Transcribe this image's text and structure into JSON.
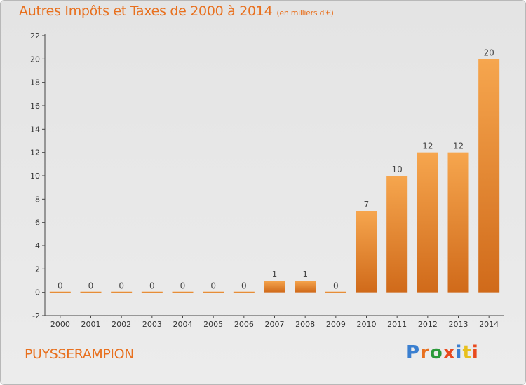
{
  "header": {
    "title": "Autres Impôts et Taxes de 2000 à 2014",
    "subtitle": "(en milliers d'€)"
  },
  "footer": {
    "commune": "PUYSSERAMPION",
    "brand": "Proxiti",
    "brand_colors": [
      "#3a7fd0",
      "#e8701e",
      "#2b9a3a",
      "#e84a1e",
      "#3a7fd0",
      "#e8c01e",
      "#e84a1e"
    ]
  },
  "colors": {
    "bar_light": "#f6a64e",
    "bar_dark": "#d06a1a",
    "accent": "#e8701e"
  },
  "chart_data": {
    "type": "bar",
    "title": "Autres Impôts et Taxes de 2000 à 2014",
    "subtitle": "(en milliers d'€)",
    "categories": [
      "2000",
      "2001",
      "2002",
      "2003",
      "2004",
      "2005",
      "2006",
      "2007",
      "2008",
      "2009",
      "2010",
      "2011",
      "2012",
      "2013",
      "2014"
    ],
    "values": [
      0,
      0,
      0,
      0,
      0,
      0,
      0,
      1,
      1,
      0,
      7,
      10,
      12,
      12,
      20
    ],
    "ylim": [
      -2,
      22
    ],
    "yticks": [
      -2,
      0,
      2,
      4,
      6,
      8,
      10,
      12,
      14,
      16,
      18,
      20,
      22
    ],
    "grid": false,
    "legend": "none"
  }
}
